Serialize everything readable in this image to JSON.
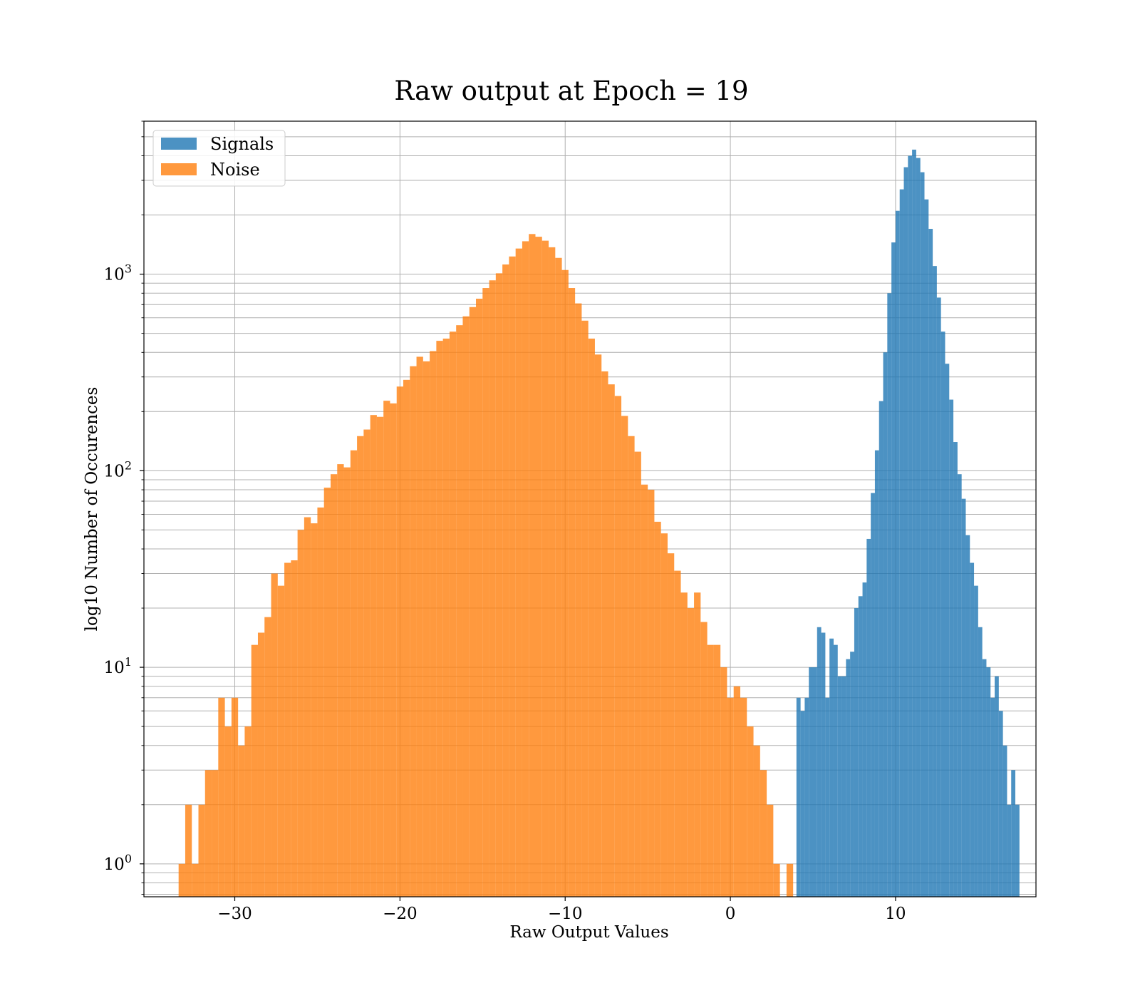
{
  "chart_data": {
    "type": "histogram",
    "title": "Raw output at Epoch = 19",
    "xlabel": "Raw Output Values",
    "ylabel": "log10 Number of Occurences",
    "yscale": "log",
    "xlim": [
      -35.5,
      18.5
    ],
    "ylim": [
      0.68,
      6000
    ],
    "x_ticks": [
      -30,
      -20,
      -10,
      0,
      10
    ],
    "x_tick_labels": [
      "−30",
      "−20",
      "−10",
      "0",
      "10"
    ],
    "y_ticks": [
      1,
      10,
      100,
      1000
    ],
    "y_tick_labels": [
      "10",
      "10",
      "10",
      "10"
    ],
    "y_tick_exponents": [
      "0",
      "1",
      "2",
      "3"
    ],
    "grid": true,
    "legend_position": "upper-left",
    "series": [
      {
        "name": "Signals",
        "color": "#1f77b4",
        "opacity": 0.8,
        "bin_start": 4.0,
        "bin_width": 0.25,
        "counts": [
          7,
          6,
          7,
          10,
          10,
          16,
          15,
          7,
          14,
          13,
          9,
          9,
          11,
          12,
          20,
          23,
          27,
          45,
          77,
          127,
          226,
          400,
          800,
          1450,
          2100,
          2700,
          3500,
          4000,
          4300,
          3900,
          3300,
          2400,
          1700,
          1100,
          760,
          510,
          350,
          230,
          140,
          96,
          72,
          47,
          34,
          26,
          16,
          11,
          10,
          7,
          9,
          6,
          4,
          2,
          3,
          2
        ]
      },
      {
        "name": "Noise",
        "color": "#ff7f0e",
        "opacity": 0.8,
        "bin_start": -33.4,
        "bin_width": 0.4,
        "counts": [
          1,
          2,
          1,
          2,
          3,
          3,
          7,
          5,
          7,
          4,
          5,
          13,
          15,
          18,
          30,
          26,
          34,
          35,
          50,
          58,
          54,
          65,
          82,
          96,
          108,
          104,
          127,
          150,
          162,
          192,
          188,
          227,
          220,
          268,
          290,
          340,
          380,
          360,
          406,
          458,
          470,
          510,
          550,
          610,
          680,
          750,
          850,
          930,
          1010,
          1120,
          1230,
          1350,
          1470,
          1600,
          1550,
          1480,
          1370,
          1210,
          1050,
          850,
          710,
          580,
          470,
          390,
          320,
          275,
          240,
          190,
          150,
          125,
          85,
          80,
          55,
          48,
          38,
          31,
          24,
          20,
          24,
          17,
          13,
          13,
          10,
          7,
          8,
          7,
          5,
          4,
          3,
          2,
          1,
          0,
          1
        ]
      }
    ]
  }
}
